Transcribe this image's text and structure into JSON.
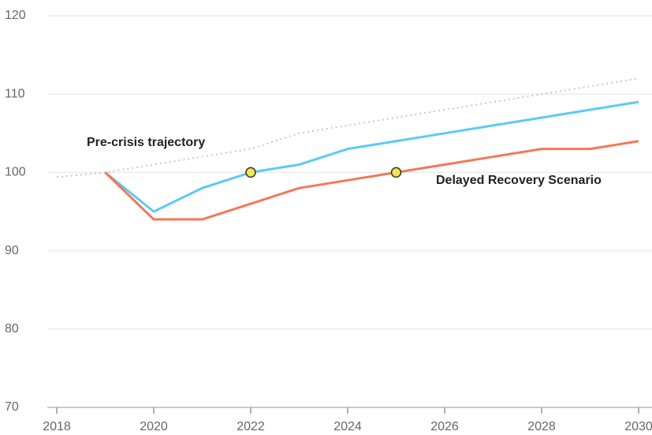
{
  "chart_data": {
    "type": "line",
    "x": [
      2018,
      2019,
      2020,
      2021,
      2022,
      2023,
      2024,
      2025,
      2026,
      2027,
      2028,
      2029,
      2030
    ],
    "series": [
      {
        "name": "Pre-crisis trajectory",
        "color": "#c8c8c8",
        "dashed": true,
        "values": [
          99.4,
          100,
          101,
          102,
          103,
          105,
          106,
          107,
          108,
          109,
          110,
          111,
          112
        ]
      },
      {
        "color": "#5bcbf5",
        "values": [
          null,
          100,
          95,
          98,
          100,
          101,
          103,
          104,
          105,
          106,
          107,
          108,
          109
        ]
      },
      {
        "name": "Delayed Recovery Scenario",
        "color": "#f4775a",
        "values": [
          null,
          100,
          94,
          94,
          96,
          98,
          99,
          100,
          101,
          102,
          103,
          103,
          104
        ]
      }
    ],
    "markers": {
      "x": [
        2022,
        2025
      ],
      "values": [
        100,
        100
      ],
      "color": "#f2e64a"
    },
    "xlim": [
      2018,
      2030
    ],
    "xticks": [
      2018,
      2020,
      2022,
      2024,
      2026,
      2028,
      2030
    ],
    "ylim": [
      70,
      120
    ],
    "yticks": [
      70,
      80,
      90,
      100,
      110,
      120
    ],
    "grid": true
  }
}
